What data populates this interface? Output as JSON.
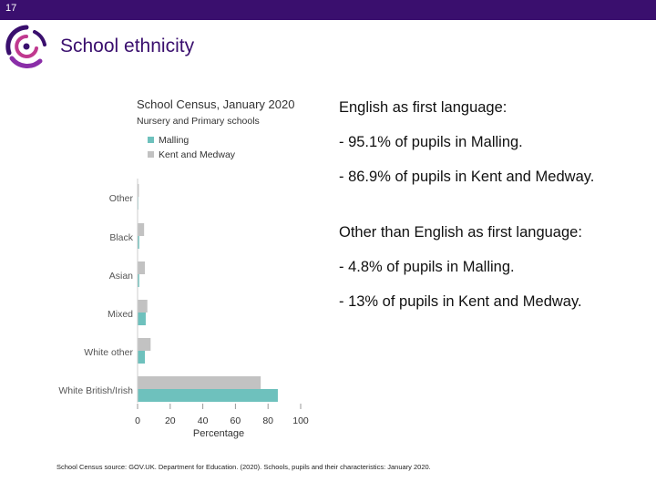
{
  "slide": {
    "number": "17",
    "title": "School ethnicity"
  },
  "colors": {
    "brand": "#3a0f6e",
    "malling": "#6ec1bd",
    "kent": "#c2c2c2"
  },
  "chart_data": {
    "type": "bar",
    "orientation": "horizontal",
    "title": "School Census, January 2020",
    "subtitle": "Nursery and Primary schools",
    "categories": [
      "Other",
      "Black",
      "Asian",
      "Mixed",
      "White other",
      "White British/Irish"
    ],
    "series": [
      {
        "name": "Malling",
        "values": [
          0.3,
          1,
          1,
          5,
          4.5,
          86
        ]
      },
      {
        "name": "Kent and Medway",
        "values": [
          0.8,
          4,
          4.5,
          6,
          8,
          75.5
        ]
      }
    ],
    "xlabel": "Percentage",
    "xlim": [
      0,
      100
    ],
    "xticks": [
      "0",
      "20",
      "40",
      "60",
      "80",
      "100"
    ],
    "legend": "top-left",
    "grid": false
  },
  "content": {
    "first_language_heading": "English as first language:",
    "first_language_malling": "- 95.1% of pupils in Malling.",
    "first_language_kent": "- 86.9% of pupils in Kent and Medway.",
    "other_language_heading": "Other than English as first language:",
    "other_language_malling": "- 4.8% of pupils in Malling.",
    "other_language_kent": "- 13% of pupils in Kent and Medway."
  },
  "footnote": "School Census source: GOV.UK. Department for Education. (2020). Schools, pupils and their characteristics: January 2020."
}
